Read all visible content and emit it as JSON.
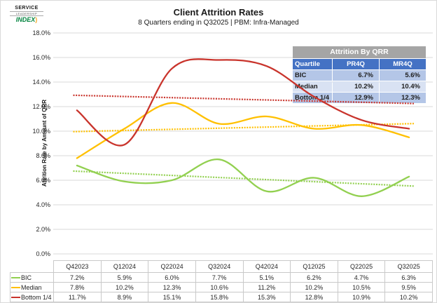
{
  "logo": {
    "line1": "SERVICE",
    "line2": "LEADERSHIP",
    "line3": "INDEX",
    "swoosh": ")"
  },
  "header": {
    "title": "Client Attrition Rates",
    "subtitle": "8 Quarters ending in Q32025 | PBM: Infra-Managed"
  },
  "chart_data": {
    "type": "line",
    "smooth": true,
    "grid": true,
    "title": "Client Attrition Rates",
    "xlabel": "",
    "ylabel": "Attrition Rate by Amount of QRR",
    "ylim": [
      0,
      18
    ],
    "y_tick_step": 2,
    "y_ticks": [
      "0.0%",
      "2.0%",
      "4.0%",
      "6.0%",
      "8.0%",
      "10.0%",
      "12.0%",
      "14.0%",
      "16.0%",
      "18.0%"
    ],
    "categories": [
      "Q42023",
      "Q12024",
      "Q22024",
      "Q32024",
      "Q42024",
      "Q12025",
      "Q22025",
      "Q32025"
    ],
    "series": [
      {
        "name": "BIC",
        "color": "#92D050",
        "values": [
          7.2,
          5.9,
          6.0,
          7.7,
          5.1,
          6.2,
          4.7,
          6.3
        ]
      },
      {
        "name": "Median",
        "color": "#FFC000",
        "values": [
          7.8,
          10.2,
          12.3,
          10.6,
          11.2,
          10.2,
          10.5,
          9.5
        ]
      },
      {
        "name": "Bottom 1/4",
        "color": "#C9342C",
        "values": [
          11.7,
          8.9,
          15.1,
          15.8,
          15.3,
          12.8,
          10.9,
          10.2
        ]
      }
    ],
    "trendlines": "linear_dotted_per_series",
    "legend_position": "bottom-table",
    "value_format": "percent_1dp"
  },
  "qrr_table": {
    "title": "Attrition By QRR",
    "columns": [
      "Quartile",
      "PR4Q",
      "MR4Q"
    ],
    "rows": [
      [
        "BIC",
        "6.7%",
        "5.6%"
      ],
      [
        "Median",
        "10.2%",
        "10.4%"
      ],
      [
        "Bottom 1/4",
        "12.9%",
        "12.3%"
      ]
    ]
  }
}
